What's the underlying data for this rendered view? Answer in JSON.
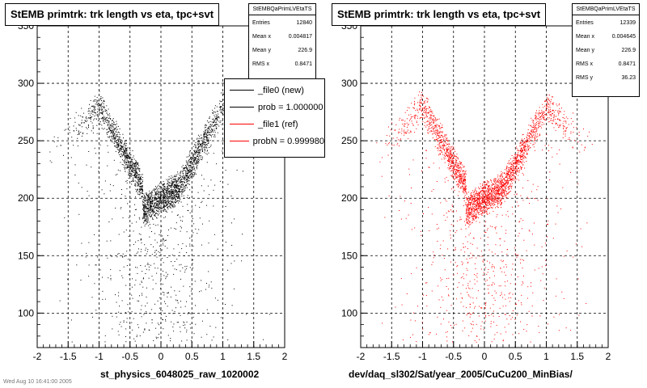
{
  "chart_data": [
    {
      "type": "scatter",
      "title": "StEMB primtrk: trk length vs eta, tpc+svt",
      "xlabel": "st_physics_6048025_raw_1020002",
      "ylabel": "",
      "xlim": [
        -2,
        2
      ],
      "ylim": [
        70,
        350
      ],
      "x_ticks": [
        "-2",
        "-1.5",
        "-1",
        "-0.5",
        "0",
        "0.5",
        "1",
        "1.5",
        "2"
      ],
      "y_ticks": [
        "100",
        "150",
        "200",
        "250",
        "300",
        "350"
      ],
      "grid": true,
      "marker_color": "#000000",
      "stats": {
        "name": "StEMBQaPrimLVEtaTS",
        "rows": [
          [
            "Entries",
            "12840"
          ],
          [
            "Mean x",
            "0.004817"
          ],
          [
            "Mean y",
            "226.9"
          ],
          [
            "RMS x",
            "0.8471"
          ]
        ]
      },
      "legend": {
        "placement": "top-right",
        "entries": [
          {
            "label": "_file0 (new)",
            "color": "#000000"
          },
          {
            "label": "prob = 1.000000",
            "color": "#000000"
          },
          {
            "label": "_file1 (ref)",
            "color": "#ff0000"
          },
          {
            "label": "probN = 0.999980",
            "color": "#ff0000"
          }
        ]
      },
      "bands": [
        {
          "x": [
            -2.0,
            -1.0
          ],
          "y": [
            230,
            280
          ]
        },
        {
          "x": [
            -1.0,
            -0.3
          ],
          "y": [
            280,
            210
          ]
        },
        {
          "x": [
            -0.3,
            0.3
          ],
          "y": [
            190,
            210
          ]
        },
        {
          "x": [
            0.3,
            1.0
          ],
          "y": [
            210,
            280
          ]
        },
        {
          "x": [
            1.0,
            2.0
          ],
          "y": [
            280,
            230
          ]
        }
      ],
      "footer": "Wed Aug 10 16:41:00 2005"
    },
    {
      "type": "scatter",
      "title": "StEMB primtrk: trk length vs eta, tpc+svt",
      "xlabel": "dev/daq_sl302/Sat/year_2005/CuCu200_MinBias/",
      "ylabel": "",
      "xlim": [
        -2,
        2
      ],
      "ylim": [
        70,
        350
      ],
      "x_ticks": [
        "-2",
        "-1.5",
        "-1",
        "-0.5",
        "0",
        "0.5",
        "1",
        "1.5",
        "2"
      ],
      "y_ticks": [
        "100",
        "150",
        "200",
        "250",
        "300",
        "350"
      ],
      "grid": true,
      "marker_color": "#ff0000",
      "stats": {
        "name": "StEMBQaPrimLVEtaTS",
        "rows": [
          [
            "Entries",
            "12339"
          ],
          [
            "Mean x",
            "0.004645"
          ],
          [
            "Mean y",
            "226.9"
          ],
          [
            "RMS x",
            "0.8471"
          ],
          [
            "RMS y",
            "36.23"
          ]
        ]
      },
      "bands": [
        {
          "x": [
            -2.0,
            -1.0
          ],
          "y": [
            230,
            280
          ]
        },
        {
          "x": [
            -1.0,
            -0.3
          ],
          "y": [
            280,
            210
          ]
        },
        {
          "x": [
            -0.3,
            0.3
          ],
          "y": [
            190,
            210
          ]
        },
        {
          "x": [
            0.3,
            1.0
          ],
          "y": [
            210,
            280
          ]
        },
        {
          "x": [
            1.0,
            2.0
          ],
          "y": [
            280,
            230
          ]
        }
      ]
    }
  ]
}
